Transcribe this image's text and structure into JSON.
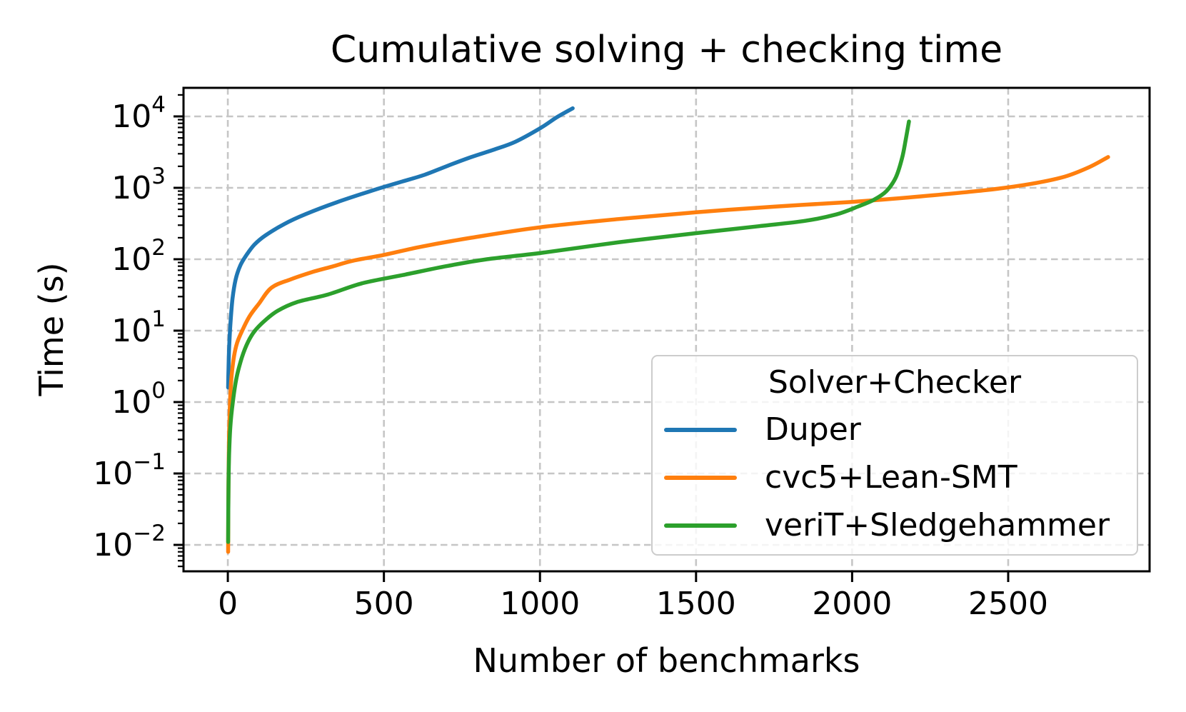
{
  "figure": {
    "title": "Cumulative solving + checking time",
    "xlabel": "Number of benchmarks",
    "ylabel": "Time (s)"
  },
  "colors": {
    "background": "#ffffff",
    "axis": "#000000",
    "grid": "#c6c6c6",
    "legend_border": "#cccccc",
    "text": "#000000"
  },
  "chart_data": {
    "type": "line",
    "title": "Cumulative solving + checking time",
    "xlabel": "Number of benchmarks",
    "ylabel": "Time (s)",
    "x_scale": "linear",
    "y_scale": "log",
    "xlim": [
      -142,
      2953
    ],
    "ylim": [
      0.00427,
      25700
    ],
    "ylim_log10": [
      -2.37,
      4.4
    ],
    "grid": true,
    "grid_style": "dashed",
    "x_ticks": [
      0,
      500,
      1000,
      1500,
      2000,
      2500
    ],
    "y_tick_labels": [
      "10⁴",
      "10³",
      "10²",
      "10¹",
      "10⁰",
      "10⁻¹",
      "10⁻²"
    ],
    "y_tick_exponents": [
      "4",
      "3",
      "2",
      "1",
      "0",
      "−1",
      "−2"
    ],
    "y_tick_values": [
      10000,
      1000,
      100,
      10,
      1,
      0.1,
      0.01
    ],
    "legend": {
      "title": "Solver+Checker",
      "position": "lower right"
    },
    "series": [
      {
        "name": "Duper",
        "color": "#1f77b4",
        "points": [
          [
            1,
            1.6
          ],
          [
            2,
            2.8
          ],
          [
            4,
            5.5
          ],
          [
            8,
            12
          ],
          [
            15,
            28
          ],
          [
            25,
            52
          ],
          [
            40,
            82
          ],
          [
            60,
            115
          ],
          [
            85,
            160
          ],
          [
            120,
            215
          ],
          [
            180,
            310
          ],
          [
            250,
            430
          ],
          [
            350,
            630
          ],
          [
            450,
            880
          ],
          [
            500,
            1030
          ],
          [
            560,
            1230
          ],
          [
            630,
            1520
          ],
          [
            700,
            2000
          ],
          [
            780,
            2700
          ],
          [
            850,
            3400
          ],
          [
            920,
            4400
          ],
          [
            1000,
            6800
          ],
          [
            1055,
            9800
          ],
          [
            1105,
            13000
          ]
        ]
      },
      {
        "name": "cvc5+Lean-SMT",
        "color": "#ff7f0e",
        "points": [
          [
            1,
            0.008
          ],
          [
            2,
            0.08
          ],
          [
            4,
            0.35
          ],
          [
            7,
            1
          ],
          [
            12,
            2.3
          ],
          [
            20,
            4.4
          ],
          [
            30,
            6.8
          ],
          [
            46,
            10
          ],
          [
            70,
            16
          ],
          [
            100,
            24
          ],
          [
            140,
            40
          ],
          [
            200,
            52
          ],
          [
            270,
            66
          ],
          [
            330,
            78
          ],
          [
            400,
            95
          ],
          [
            500,
            115
          ],
          [
            620,
            150
          ],
          [
            780,
            200
          ],
          [
            1000,
            280
          ],
          [
            1250,
            365
          ],
          [
            1500,
            455
          ],
          [
            1750,
            545
          ],
          [
            2000,
            635
          ],
          [
            2200,
            745
          ],
          [
            2430,
            930
          ],
          [
            2570,
            1130
          ],
          [
            2680,
            1430
          ],
          [
            2760,
            1950
          ],
          [
            2820,
            2700
          ]
        ]
      },
      {
        "name": "veriT+Sledgehammer",
        "color": "#2ca02c",
        "points": [
          [
            1,
            0.011
          ],
          [
            2,
            0.06
          ],
          [
            4,
            0.18
          ],
          [
            8,
            0.45
          ],
          [
            16,
            1
          ],
          [
            28,
            2.2
          ],
          [
            45,
            4.2
          ],
          [
            65,
            7
          ],
          [
            87,
            10
          ],
          [
            120,
            14
          ],
          [
            160,
            19
          ],
          [
            220,
            25
          ],
          [
            320,
            32
          ],
          [
            430,
            46
          ],
          [
            560,
            60
          ],
          [
            700,
            80
          ],
          [
            830,
            100
          ],
          [
            1000,
            122
          ],
          [
            1250,
            172
          ],
          [
            1500,
            232
          ],
          [
            1700,
            290
          ],
          [
            1850,
            345
          ],
          [
            1950,
            425
          ],
          [
            2020,
            550
          ],
          [
            2070,
            680
          ],
          [
            2110,
            900
          ],
          [
            2140,
            1400
          ],
          [
            2160,
            2600
          ],
          [
            2172,
            4800
          ],
          [
            2182,
            8500
          ]
        ]
      }
    ]
  }
}
